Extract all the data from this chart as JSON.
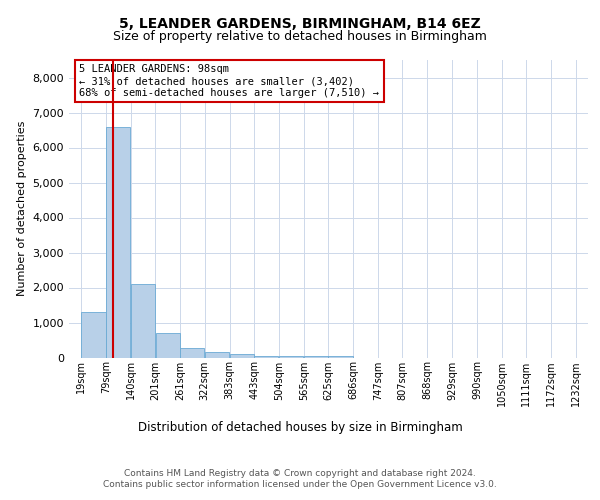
{
  "title1": "5, LEANDER GARDENS, BIRMINGHAM, B14 6EZ",
  "title2": "Size of property relative to detached houses in Birmingham",
  "xlabel": "Distribution of detached houses by size in Birmingham",
  "ylabel": "Number of detached properties",
  "footer1": "Contains HM Land Registry data © Crown copyright and database right 2024.",
  "footer2": "Contains public sector information licensed under the Open Government Licence v3.0.",
  "annotation_title": "5 LEANDER GARDENS: 98sqm",
  "annotation_line1": "← 31% of detached houses are smaller (3,402)",
  "annotation_line2": "68% of semi-detached houses are larger (7,510) →",
  "property_size": 98,
  "bar_edges": [
    19,
    79,
    140,
    201,
    261,
    322,
    383,
    443,
    504,
    565,
    625,
    686,
    747,
    807,
    868,
    929,
    990,
    1050,
    1111,
    1172,
    1232
  ],
  "bar_values": [
    1300,
    6600,
    2100,
    700,
    280,
    150,
    90,
    55,
    50,
    50,
    30,
    0,
    0,
    0,
    0,
    0,
    0,
    0,
    0,
    0
  ],
  "bar_color": "#b8d0e8",
  "bar_edge_color": "#6aaad4",
  "line_color": "#cc0000",
  "box_edge_color": "#cc0000",
  "background_color": "#ffffff",
  "grid_color": "#cdd8ea",
  "ylim": [
    0,
    8500
  ],
  "yticks": [
    0,
    1000,
    2000,
    3000,
    4000,
    5000,
    6000,
    7000,
    8000
  ]
}
